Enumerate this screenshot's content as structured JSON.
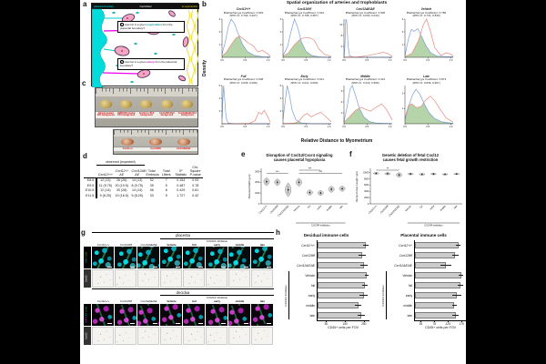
{
  "panels": {
    "a": "a",
    "b": "b",
    "c": "c",
    "d": "d",
    "e": "e",
    "f": "f",
    "g": "g",
    "h": "h"
  },
  "colors": {
    "canvas": "#000000",
    "figure": "#ffffff",
    "trophoblast_line": "#7b9edc",
    "artery_line": "#e8897d",
    "overlap_fill": "#aecfa0",
    "red_label": "#cc1111"
  },
  "panel_a": {
    "banner_left": "placental boundary",
    "banner_mid": "trophoblast",
    "banner_right": "to myometrium",
    "q1_num": "1",
    "q1_pre": "How far is a given ",
    "q1_hl": "trophoblast",
    "q1_post": " from the placental boundary?",
    "q2_num": "2",
    "q2_pre": "How far is a given ",
    "q2_hl": "artery",
    "q2_post": " from the placental boundary?"
  },
  "panel_b": {
    "type": "density",
    "title": "Spatial organization of arteries and trophoblasts",
    "ylabel": "Density",
    "xlabel": "Relative Distance to Myometrium",
    "xticks": [
      "0.0",
      "0.5",
      "1.0"
    ],
    "colors": {
      "trophoblast": "#7b9edc",
      "artery": "#e8897d",
      "overlap": "#aecfa0"
    },
    "plots": [
      {
        "name": "Cxcl12+/+",
        "coef": "Bhattacharyya Coefficient: 0.904",
        "ci": "[95% CI: 0.793, 0.927]",
        "ymax": 3,
        "yticks": [
          1,
          2,
          3
        ],
        "blue": [
          [
            0,
            0.08
          ],
          [
            0.07,
            0.4
          ],
          [
            0.14,
            0.82
          ],
          [
            0.2,
            1.0
          ],
          [
            0.27,
            0.88
          ],
          [
            0.35,
            0.62
          ],
          [
            0.45,
            0.33
          ],
          [
            0.55,
            0.15
          ],
          [
            0.7,
            0.05
          ],
          [
            0.9,
            0.01
          ],
          [
            1.05,
            0.01
          ]
        ],
        "red": [
          [
            0,
            0.03
          ],
          [
            0.1,
            0.14
          ],
          [
            0.2,
            0.33
          ],
          [
            0.3,
            0.5
          ],
          [
            0.38,
            0.56
          ],
          [
            0.48,
            0.47
          ],
          [
            0.58,
            0.37
          ],
          [
            0.68,
            0.3
          ],
          [
            0.78,
            0.14
          ],
          [
            0.88,
            0.18
          ],
          [
            0.98,
            0.1
          ],
          [
            1.05,
            0.03
          ]
        ]
      },
      {
        "name": "Cxcl12fl/fl",
        "coef": "Bhattacharyya Coefficient: 0.931",
        "ci": "[95% CI: 0.798, 0.957]",
        "ymax": 3,
        "yticks": [
          1,
          2,
          3
        ],
        "blue": [
          [
            0,
            0.04
          ],
          [
            0.1,
            0.28
          ],
          [
            0.18,
            0.7
          ],
          [
            0.25,
            1.0
          ],
          [
            0.32,
            0.78
          ],
          [
            0.4,
            0.4
          ],
          [
            0.5,
            0.16
          ],
          [
            0.62,
            0.05
          ],
          [
            0.8,
            0.01
          ],
          [
            1.05,
            0
          ]
        ],
        "red": [
          [
            0,
            0.02
          ],
          [
            0.12,
            0.12
          ],
          [
            0.25,
            0.33
          ],
          [
            0.38,
            0.48
          ],
          [
            0.5,
            0.52
          ],
          [
            0.6,
            0.5
          ],
          [
            0.68,
            0.45
          ],
          [
            0.78,
            0.22
          ],
          [
            0.9,
            0.08
          ],
          [
            1.05,
            0.02
          ]
        ]
      },
      {
        "name": "Cxcl12ΔE/ΔE",
        "coef": "Bhattacharyya Coefficient: 0.006",
        "ci": "[95% CI: 0.000, 0.014]",
        "ymax": 14,
        "yticks": [
          4,
          8,
          12
        ],
        "blue": [
          [
            0,
            0.01
          ],
          [
            0.02,
            0.3
          ],
          [
            0.04,
            1.0
          ],
          [
            0.06,
            0.95
          ],
          [
            0.09,
            0.3
          ],
          [
            0.12,
            0.04
          ],
          [
            0.2,
            0.005
          ],
          [
            1.05,
            0
          ]
        ],
        "red": [
          [
            0,
            0.005
          ],
          [
            0.3,
            0.01
          ],
          [
            0.5,
            0.04
          ],
          [
            0.7,
            0.09
          ],
          [
            0.85,
            0.13
          ],
          [
            0.95,
            0.1
          ],
          [
            1.05,
            0.03
          ]
        ]
      },
      {
        "name": "Vehicle",
        "coef": "Bhattacharyya Coefficient: 0.786",
        "ci": "[95% CI: 0.731, 0.843]",
        "ymax": 3,
        "yticks": [
          1,
          2,
          3
        ],
        "blue": [
          [
            0,
            0.05
          ],
          [
            0.08,
            0.5
          ],
          [
            0.14,
            0.73
          ],
          [
            0.2,
            0.68
          ],
          [
            0.28,
            0.75
          ],
          [
            0.36,
            0.55
          ],
          [
            0.46,
            0.3
          ],
          [
            0.56,
            0.12
          ],
          [
            0.7,
            0.03
          ],
          [
            1.05,
            0.01
          ]
        ],
        "red": [
          [
            0,
            0.02
          ],
          [
            0.15,
            0.1
          ],
          [
            0.3,
            0.45
          ],
          [
            0.4,
            0.85
          ],
          [
            0.47,
            1.0
          ],
          [
            0.55,
            0.7
          ],
          [
            0.65,
            0.25
          ],
          [
            0.78,
            0.05
          ],
          [
            0.9,
            0.12
          ],
          [
            1.0,
            0.08
          ],
          [
            1.05,
            0.02
          ]
        ]
      },
      {
        "name": "Full",
        "coef": "Bhattacharyya Coefficient: 0.008",
        "ci": "[95% CI: 0.006, 0.009]",
        "ymax": 6,
        "yticks": [
          2,
          4,
          6
        ],
        "blue": [
          [
            0,
            0.15
          ],
          [
            0.02,
            0.7
          ],
          [
            0.035,
            1.0
          ],
          [
            0.06,
            0.6
          ],
          [
            0.09,
            0.15
          ],
          [
            0.13,
            0.02
          ],
          [
            0.25,
            0.003
          ],
          [
            1.05,
            0
          ]
        ],
        "red": [
          [
            0,
            0
          ],
          [
            0.4,
            0.003
          ],
          [
            0.6,
            0.01
          ],
          [
            0.72,
            0.08
          ],
          [
            0.8,
            0.3
          ],
          [
            0.86,
            0.25
          ],
          [
            0.92,
            0.35
          ],
          [
            0.98,
            0.22
          ],
          [
            1.05,
            0.04
          ]
        ]
      },
      {
        "name": "Early",
        "coef": "Bhattacharyya Coefficient: 0.041",
        "ci": "[95% CI: 0.011, 0.063]",
        "ymax": 6,
        "yticks": [
          2,
          4,
          6
        ],
        "blue": [
          [
            0,
            0.12
          ],
          [
            0.05,
            0.6
          ],
          [
            0.09,
            1.0
          ],
          [
            0.14,
            0.75
          ],
          [
            0.2,
            0.35
          ],
          [
            0.28,
            0.1
          ],
          [
            0.4,
            0.02
          ],
          [
            0.6,
            0.005
          ],
          [
            1.05,
            0
          ]
        ],
        "red": [
          [
            0,
            0.003
          ],
          [
            0.25,
            0.015
          ],
          [
            0.35,
            0.07
          ],
          [
            0.45,
            0.22
          ],
          [
            0.52,
            0.27
          ],
          [
            0.62,
            0.18
          ],
          [
            0.72,
            0.25
          ],
          [
            0.82,
            0.3
          ],
          [
            0.92,
            0.2
          ],
          [
            1.05,
            0.05
          ]
        ]
      },
      {
        "name": "Middle",
        "coef": "Bhattacharyya Coefficient: 0.412",
        "ci": "[95% CI: 0.316, 0.506]",
        "ymax": 3.5,
        "yticks": [
          1,
          2,
          3
        ],
        "blue": [
          [
            0,
            0.06
          ],
          [
            0.07,
            0.45
          ],
          [
            0.13,
            0.9
          ],
          [
            0.18,
            1.0
          ],
          [
            0.25,
            0.75
          ],
          [
            0.33,
            0.42
          ],
          [
            0.43,
            0.18
          ],
          [
            0.55,
            0.06
          ],
          [
            0.7,
            0.02
          ],
          [
            1.05,
            0.005
          ]
        ],
        "red": [
          [
            0,
            0.04
          ],
          [
            0.12,
            0.18
          ],
          [
            0.25,
            0.35
          ],
          [
            0.38,
            0.43
          ],
          [
            0.48,
            0.37
          ],
          [
            0.58,
            0.33
          ],
          [
            0.7,
            0.43
          ],
          [
            0.82,
            0.52
          ],
          [
            0.92,
            0.38
          ],
          [
            1.05,
            0.1
          ]
        ]
      },
      {
        "name": "Late",
        "coef": "Bhattacharyya Coefficient: 0.873",
        "ci": "[95% CI: 0.836, 0.907]",
        "ymax": 2.5,
        "yticks": [
          1,
          2
        ],
        "blue": [
          [
            0,
            0.1
          ],
          [
            0.08,
            0.45
          ],
          [
            0.16,
            0.75
          ],
          [
            0.24,
            0.9
          ],
          [
            0.32,
            0.78
          ],
          [
            0.42,
            0.52
          ],
          [
            0.52,
            0.3
          ],
          [
            0.64,
            0.14
          ],
          [
            0.8,
            0.05
          ],
          [
            1.05,
            0.01
          ]
        ],
        "red": [
          [
            0,
            0.15
          ],
          [
            0.08,
            0.48
          ],
          [
            0.15,
            0.52
          ],
          [
            0.25,
            0.42
          ],
          [
            0.35,
            0.45
          ],
          [
            0.45,
            0.62
          ],
          [
            0.55,
            0.72
          ],
          [
            0.65,
            0.6
          ],
          [
            0.78,
            0.35
          ],
          [
            0.9,
            0.15
          ],
          [
            1.05,
            0.04
          ]
        ]
      }
    ]
  },
  "panel_c": {
    "photo1_labels": [
      "Vehicle treated CD1 background",
      "AMD3100 treated CD1 background",
      "Cxcl12+/+ BL6 background",
      "Cxcl12fl/fl BL6 background",
      "Cxcl12ΔE/ΔE BL6 background"
    ],
    "photo2_labels": [
      "Cxcl12+/+",
      "Cxcl12fl/fl",
      "Cxcl12ΔE/ΔE"
    ]
  },
  "panel_d": {
    "type": "table",
    "group_header": "observed (expected)",
    "columns": [
      "",
      "Cxcl12+/+",
      "Cxcl12+/ΔE",
      "Cxcl12ΔE/ΔE",
      "Total Embryos",
      "Total Litters",
      "X² Statistic",
      "Chi-Square P-value"
    ],
    "rows": [
      [
        "E8.5",
        "12 (13)",
        "26 (26)",
        "14 (13)",
        "52",
        "7",
        "0.154",
        "0.93"
      ],
      [
        "E9.5",
        "11 (9.75)",
        "20 (19.5)",
        "8 (9.75)",
        "39",
        "5",
        "0.487",
        "0.78"
      ],
      [
        "E10.5",
        "12 (14)",
        "30 (28)",
        "14 (14)",
        "56",
        "8",
        "0.429",
        "0.81"
      ],
      [
        "E11.5",
        "9 (8.25)",
        "19 (16.5)",
        "5 (8.25)",
        "33",
        "5",
        "1.727",
        "0.42"
      ]
    ]
  },
  "panel_e": {
    "type": "violin",
    "title_line1": "Disruption of Cxcl12/Cxcr4 signaling",
    "title_line2": "causes placental hypoplasia",
    "ylabel": "Placental Width (μm)",
    "ylim": [
      0,
      3200
    ],
    "yticks": [
      0,
      1000,
      2000,
      3000
    ],
    "categories": [
      "Cxcl12+/+",
      "Cxcl12fl/fl",
      "Cxcl12ΔE/ΔE",
      "Vehicle",
      "full",
      "early",
      "middle",
      "late"
    ],
    "violins": [
      [
        2050,
        380
      ],
      [
        2000,
        320
      ],
      [
        1300,
        650
      ],
      [
        2000,
        380
      ],
      [
        1050,
        260
      ],
      [
        1000,
        240
      ],
      [
        1350,
        300
      ],
      [
        1400,
        260
      ]
    ],
    "bracket_label": "CXCR4 inhibition",
    "bracket_range": [
      3,
      7
    ],
    "sig": [
      [
        0,
        2,
        "***",
        1
      ],
      [
        3,
        5,
        "***",
        0
      ],
      [
        3,
        7,
        "***",
        1
      ]
    ]
  },
  "panel_f": {
    "type": "violin",
    "title_line1": "Genetic deletion of fetal Cxcl12",
    "title_line2": "causes fetal growth restriction",
    "ylabel": "Rump-Crown Length (μm)",
    "ylim": [
      0,
      11000
    ],
    "yticks": [
      0,
      2000,
      4000,
      6000,
      8000,
      10000
    ],
    "categories": [
      "Cxcl12+/+",
      "Cxcl12fl/fl",
      "Cxcl12ΔE/ΔE",
      "Vehicle",
      "full",
      "early",
      "middle",
      "late"
    ],
    "violins": [
      [
        9700,
        350
      ],
      [
        9600,
        400
      ],
      [
        9200,
        750
      ],
      [
        9500,
        300
      ],
      [
        9400,
        320
      ],
      [
        9500,
        300
      ],
      [
        9400,
        260
      ],
      [
        9500,
        220
      ]
    ],
    "bracket_label": "CXCR4 inhibition",
    "bracket_range": [
      3,
      7
    ],
    "sig": [
      [
        0,
        2,
        "**",
        0
      ]
    ]
  },
  "panel_g": {
    "columns": [
      "Cxcl12+/+",
      "Cxcl12fl/fl",
      "Cxcl12ΔE/ΔE",
      "Vehicle",
      "full",
      "early",
      "middle",
      "late"
    ],
    "inhibition_label": "CXCR4 inhibition",
    "blocks": [
      {
        "header": "placenta",
        "rows": [
          {
            "label_parts": [
              {
                "t": "CK8",
                "c": "#00d5d5"
              },
              {
                "t": "CD31",
                "c": "#44cc44"
              }
            ],
            "style": "fluor-cyan"
          },
          {
            "label_parts": [
              {
                "t": "Cxcl12",
                "c": "#ffffff"
              }
            ],
            "style": "gray-ish"
          }
        ]
      },
      {
        "header": "decidua",
        "rows": [
          {
            "label_parts": [
              {
                "t": "SMA",
                "c": "#dd44dd"
              },
              {
                "t": "CK8",
                "c": "#00d5d5"
              },
              {
                "t": "CD31",
                "c": "#44cc44"
              }
            ],
            "style": "fluor-magenta"
          },
          {
            "label_parts": [
              {
                "t": "Cxcl12",
                "c": "#ffffff"
              }
            ],
            "style": "gray-ish"
          }
        ]
      }
    ]
  },
  "panel_h": {
    "type": "hbar",
    "bracket_label": "CXCR4 inhibition",
    "categories": [
      "Cxcl12+/+",
      "Cxcl12fl/fl",
      "Cxcl12ΔE/ΔE",
      "Vehicle",
      "full",
      "early",
      "middle",
      "late"
    ],
    "charts": [
      {
        "title": "Decidual immune cells",
        "xlabel": "CD45+ cells per FOV",
        "xticks": [
          50,
          150,
          250
        ],
        "xlim": 280,
        "values": [
          255,
          235,
          245,
          260,
          250,
          245,
          215,
          230
        ],
        "errors": [
          15,
          20,
          18,
          10,
          15,
          22,
          15,
          20
        ]
      },
      {
        "title": "Placental immune cells",
        "xlabel": "CD45+ cells per FOV",
        "xticks": [
          25,
          75,
          125,
          175
        ],
        "xlim": 195,
        "values": [
          160,
          148,
          115,
          170,
          168,
          155,
          146,
          150
        ],
        "errors": [
          10,
          12,
          20,
          8,
          10,
          16,
          10,
          12
        ]
      }
    ]
  }
}
